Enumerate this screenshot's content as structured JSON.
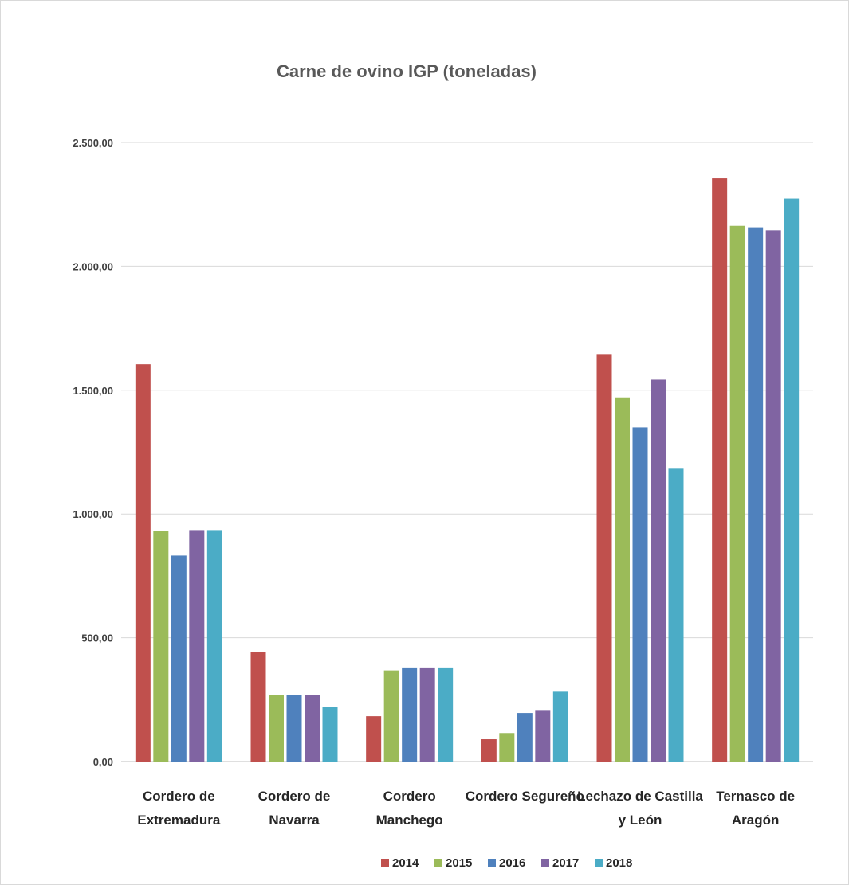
{
  "chart_data": {
    "type": "bar",
    "title": "Carne de ovino IGP (toneladas)",
    "xlabel": "",
    "ylabel": "",
    "ylim": [
      0,
      2500
    ],
    "yticks": [
      0,
      500,
      1000,
      1500,
      2000,
      2500
    ],
    "ytick_labels": [
      "0,00",
      "500,00",
      "1.000,00",
      "1.500,00",
      "2.000,00",
      "2.500,00"
    ],
    "grid": true,
    "legend_position": "bottom",
    "categories": [
      [
        "Cordero de",
        "Extremadura"
      ],
      [
        "Cordero de",
        "Navarra"
      ],
      [
        "Cordero",
        "Manchego"
      ],
      [
        "Cordero Segureño"
      ],
      [
        "Lechazo de Castilla",
        "y León"
      ],
      [
        "Ternasco de",
        "Aragón"
      ]
    ],
    "series": [
      {
        "name": "2014",
        "color": "#c0504d",
        "values": [
          1605,
          442,
          183,
          90,
          1643,
          2355
        ]
      },
      {
        "name": "2015",
        "color": "#9bbb59",
        "values": [
          930,
          270,
          368,
          115,
          1468,
          2163
        ]
      },
      {
        "name": "2016",
        "color": "#4f81bd",
        "values": [
          832,
          270,
          380,
          196,
          1350,
          2157
        ]
      },
      {
        "name": "2017",
        "color": "#8064a2",
        "values": [
          935,
          270,
          380,
          208,
          1543,
          2145
        ]
      },
      {
        "name": "2018",
        "color": "#4bacc6",
        "values": [
          935,
          220,
          380,
          282,
          1183,
          2273
        ]
      }
    ]
  }
}
